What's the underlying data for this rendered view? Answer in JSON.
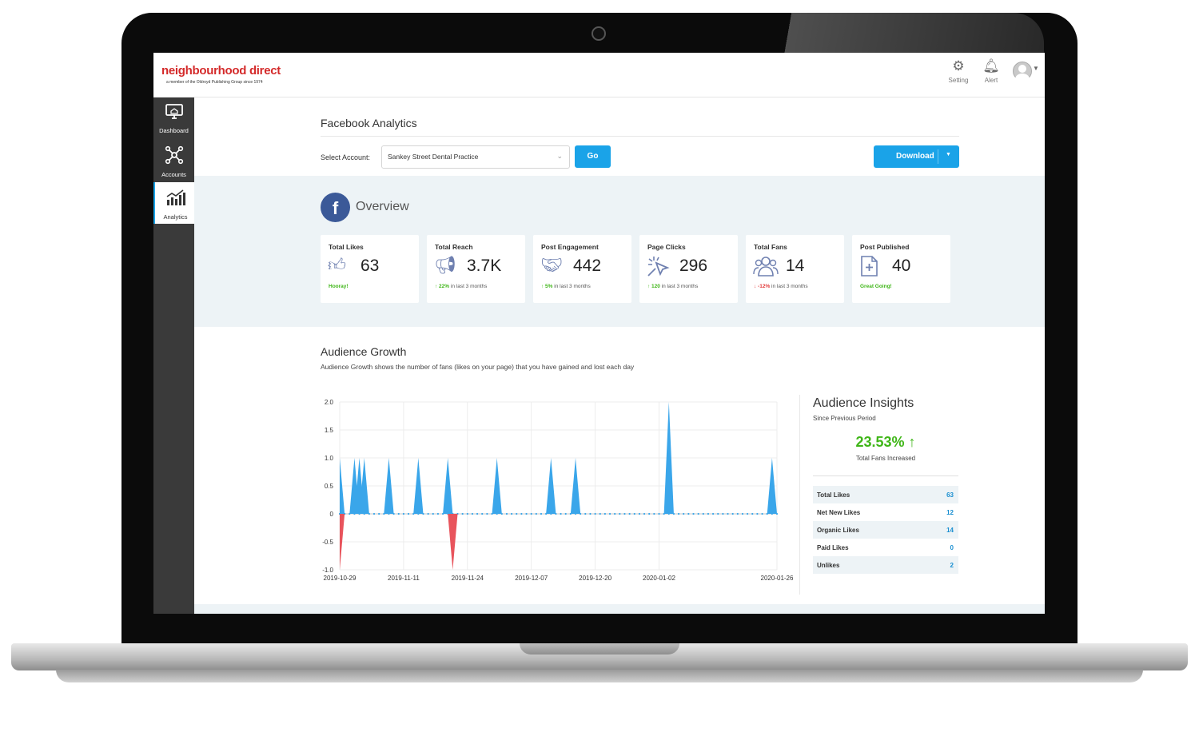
{
  "brand": {
    "name": "neighbourhood direct",
    "tagline": "a member of the Oldroyd Publishing Group since 1974"
  },
  "topbar": {
    "setting": {
      "label": "Setting",
      "icon": "gear-icon"
    },
    "alert": {
      "label": "Alert",
      "icon": "bell-icon"
    },
    "avatar": {
      "icon": "user-avatar-icon"
    }
  },
  "sidebar": {
    "items": [
      {
        "label": "Dashboard",
        "icon": "monitor-icon",
        "active": false
      },
      {
        "label": "Accounts",
        "icon": "network-icon",
        "active": false
      },
      {
        "label": "Analytics",
        "icon": "bar-chart-icon",
        "active": true
      }
    ]
  },
  "page": {
    "title": "Facebook Analytics"
  },
  "account": {
    "label": "Select Account:",
    "value": "Sankey Street Dental Practice"
  },
  "buttons": {
    "go": "Go",
    "download": "Download"
  },
  "overview": {
    "title": "Overview",
    "cards": [
      {
        "label": "Total Likes",
        "value": "63",
        "icon": "thumbs-up-icon",
        "sub_highlight": "Hooray!",
        "sub_text": "",
        "trend": "positive"
      },
      {
        "label": "Total Reach",
        "value": "3.7K",
        "icon": "megaphone-icon",
        "sub_highlight": "↑ 22%",
        "sub_text": "in last 3 months",
        "trend": "up"
      },
      {
        "label": "Post Engagement",
        "value": "442",
        "icon": "handshake-icon",
        "sub_highlight": "↑ 5%",
        "sub_text": "in last 3 months",
        "trend": "up"
      },
      {
        "label": "Page Clicks",
        "value": "296",
        "icon": "cursor-click-icon",
        "sub_highlight": "↑ 120",
        "sub_text": "in last 3 months",
        "trend": "up"
      },
      {
        "label": "Total Fans",
        "value": "14",
        "icon": "people-icon",
        "sub_highlight": "↓ -12%",
        "sub_text": "in last 3 months",
        "trend": "down"
      },
      {
        "label": "Post Published",
        "value": "40",
        "icon": "document-plus-icon",
        "sub_highlight": "Great Going!",
        "sub_text": "",
        "trend": "positive"
      }
    ]
  },
  "growth": {
    "title": "Audience Growth",
    "description": "Audience Growth shows the number of fans (likes on your page) that you have gained and lost each day"
  },
  "chart_data": {
    "type": "area",
    "y_ticks": [
      "2.0",
      "1.5",
      "1.0",
      "0.5",
      "0",
      "-0.5",
      "-1.0"
    ],
    "ylim": [
      -1,
      2
    ],
    "x_tick_labels": [
      "2019-10-29",
      "2019-11-11",
      "2019-11-24",
      "2019-12-07",
      "2019-12-20",
      "2020-01-02",
      "2020-01-26"
    ],
    "x_tick_days": [
      0,
      13,
      26,
      39,
      52,
      65,
      89
    ],
    "x_range_days": [
      0,
      89
    ],
    "grid": true,
    "colors": {
      "gain": "#3aa6ea",
      "loss": "#e8545c"
    },
    "series": [
      {
        "name": "",
        "type": "gain",
        "points": [
          [
            0,
            1
          ],
          [
            3,
            1
          ],
          [
            4,
            1
          ],
          [
            5,
            1
          ],
          [
            10,
            1
          ],
          [
            16,
            1
          ],
          [
            22,
            1
          ],
          [
            32,
            1
          ],
          [
            43,
            1
          ],
          [
            48,
            1
          ],
          [
            67,
            2
          ],
          [
            88,
            1
          ]
        ]
      },
      {
        "name": "",
        "type": "loss",
        "points": [
          [
            0,
            -1
          ],
          [
            23,
            -1
          ]
        ]
      }
    ]
  },
  "insights": {
    "title": "Audience Insights",
    "since": "Since Previous Period",
    "percent": "23.53% ↑",
    "percent_label": "Total Fans Increased",
    "rows": [
      {
        "label": "Total Likes",
        "value": "63"
      },
      {
        "label": "Net New Likes",
        "value": "12"
      },
      {
        "label": "Organic Likes",
        "value": "14"
      },
      {
        "label": "Paid Likes",
        "value": "0"
      },
      {
        "label": "Unlikes",
        "value": "2"
      }
    ]
  }
}
